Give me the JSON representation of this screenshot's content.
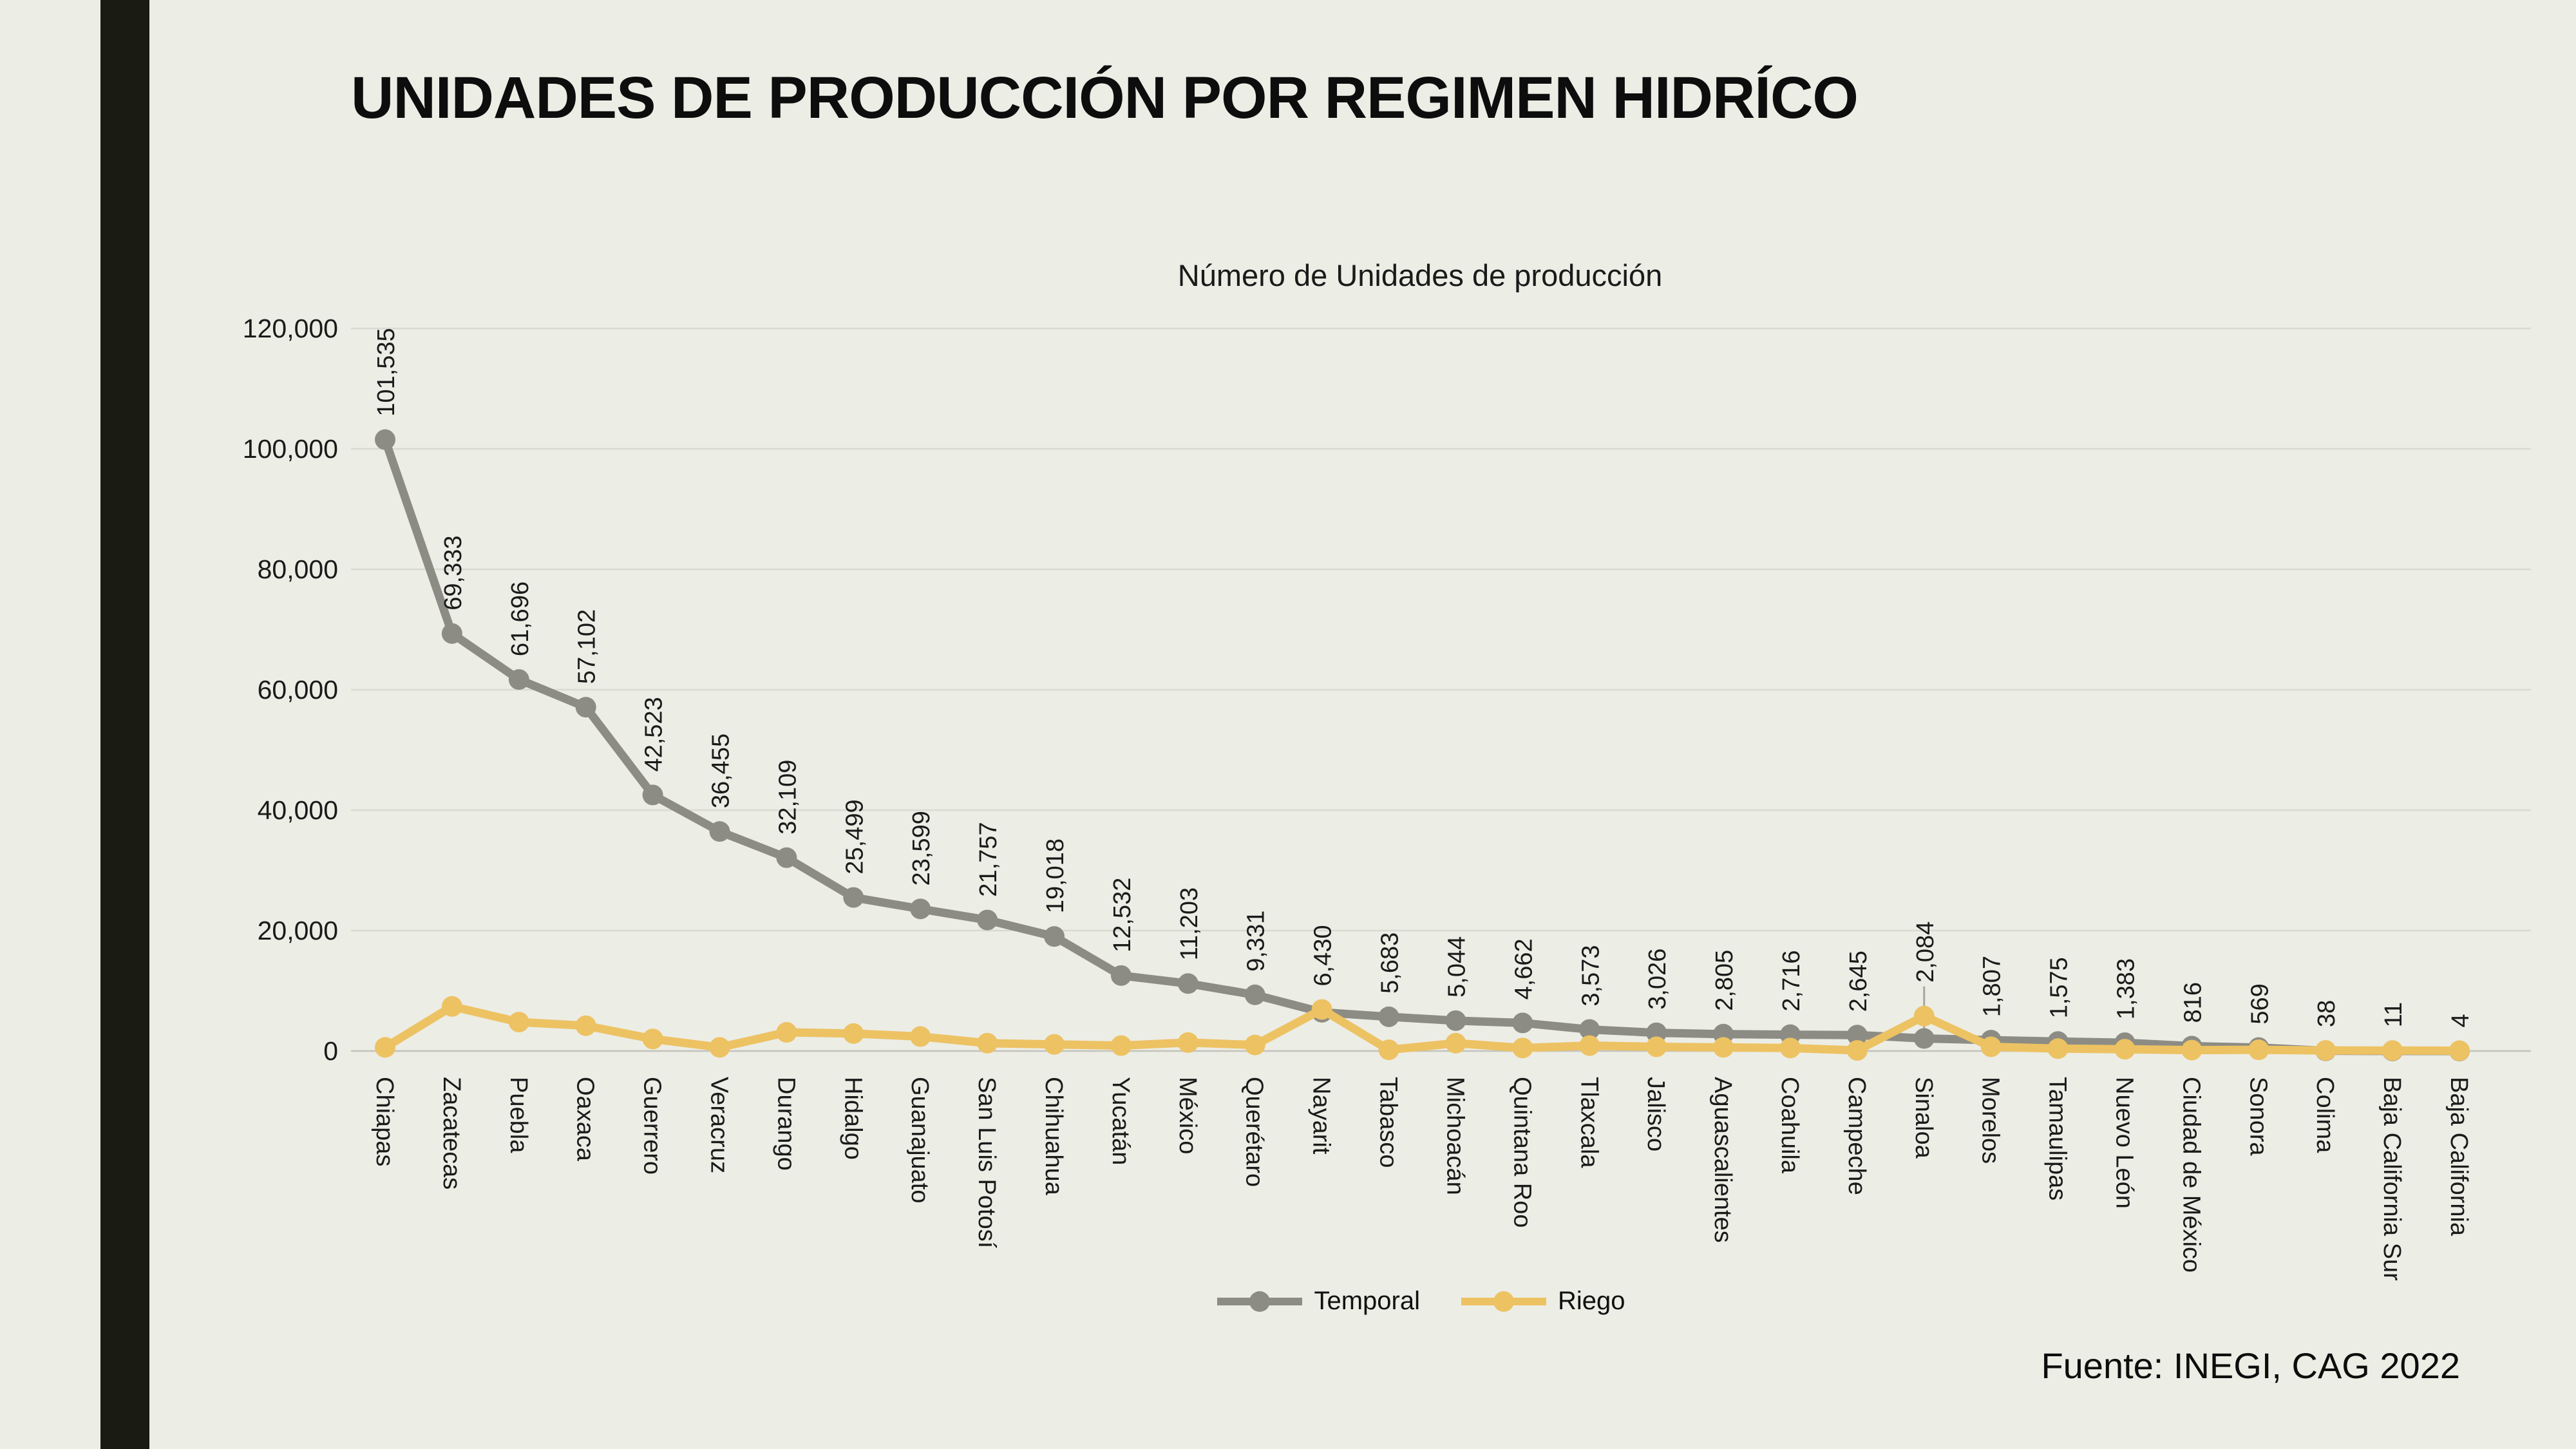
{
  "slide": {
    "title": "UNIDADES DE PRODUCCIÓN POR REGIMEN HIDRÍCO",
    "source_note": "Fuente: INEGI, CAG 2022",
    "background_color": "#ecede5",
    "accent_bar_color": "#1a1b12"
  },
  "chart_data": {
    "type": "line",
    "title": "Número de Unidades de producción",
    "categories": [
      "Chiapas",
      "Zacatecas",
      "Puebla",
      "Oaxaca",
      "Guerrero",
      "Veracruz",
      "Durango",
      "Hidalgo",
      "Guanajuato",
      "San Luis Potosí",
      "Chihuahua",
      "Yucatán",
      "México",
      "Querétaro",
      "Nayarit",
      "Tabasco",
      "Michoacán",
      "Quintana Roo",
      "Tlaxcala",
      "Jalisco",
      "Aguascalientes",
      "Coahuila",
      "Campeche",
      "Sinaloa",
      "Morelos",
      "Tamaulipas",
      "Nuevo León",
      "Ciudad de México",
      "Sonora",
      "Colima",
      "Baja California Sur",
      "Baja California"
    ],
    "series": [
      {
        "name": "Temporal",
        "color": "#8c8c84",
        "data_labels_shown": true,
        "values": [
          101535,
          69333,
          61696,
          57102,
          42523,
          36455,
          32109,
          25499,
          23599,
          21757,
          19018,
          12532,
          11203,
          9331,
          6430,
          5683,
          5044,
          4662,
          3573,
          3026,
          2805,
          2716,
          2645,
          2084,
          1807,
          1575,
          1383,
          816,
          569,
          38,
          11,
          4
        ],
        "labels": [
          "101,535",
          "69,333",
          "61,696",
          "57,102",
          "42,523",
          "36,455",
          "32,109",
          "25,499",
          "23,599",
          "21,757",
          "19,018",
          "12,532",
          "11,203",
          "9,331",
          "6,430",
          "5,683",
          "5,044",
          "4,662",
          "3,573",
          "3,026",
          "2,805",
          "2,716",
          "2,645",
          "2,084",
          "1,807",
          "1,575",
          "1,383",
          "816",
          "569",
          "38",
          "11",
          "4"
        ]
      },
      {
        "name": "Riego",
        "color": "#edc263",
        "data_labels_shown": false,
        "estimated": true,
        "values": [
          600,
          7400,
          4800,
          4200,
          2000,
          600,
          3100,
          2900,
          2400,
          1300,
          1100,
          900,
          1400,
          1000,
          6900,
          200,
          1300,
          500,
          900,
          700,
          600,
          500,
          100,
          5800,
          700,
          400,
          300,
          150,
          200,
          100,
          80,
          50
        ]
      }
    ],
    "ylim": [
      0,
      120000
    ],
    "ytick_interval": 20000,
    "ytick_labels": [
      "0",
      "20,000",
      "40,000",
      "60,000",
      "80,000",
      "100,000",
      "120,000"
    ],
    "grid": true,
    "gridline_color": "#d9dad1",
    "zero_line_color": "#c2c3bb",
    "legend_position": "bottom",
    "label_leader_category": "Sinaloa"
  }
}
